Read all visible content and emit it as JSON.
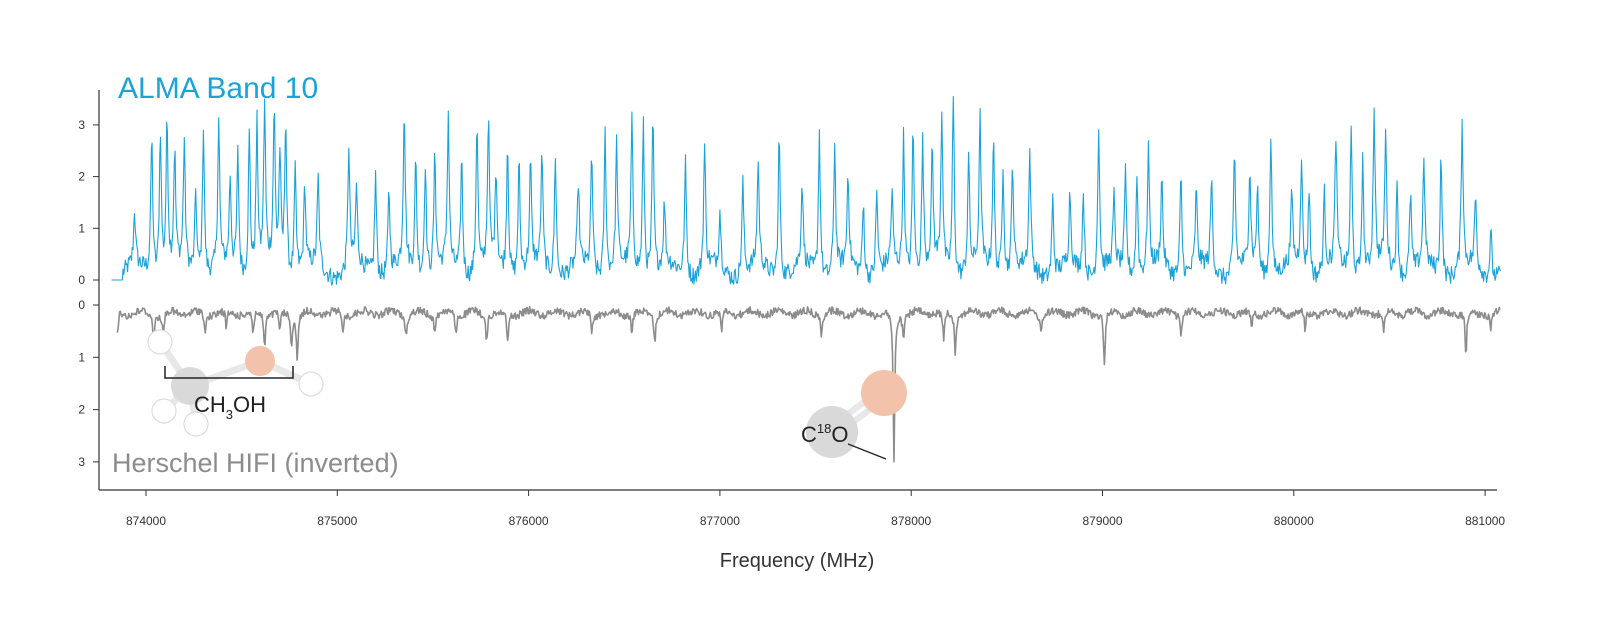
{
  "chart_data": {
    "type": "line",
    "xlabel": "Frequency (MHz)",
    "xlim": [
      873750,
      881100
    ],
    "x_ticks": [
      874000,
      875000,
      876000,
      877000,
      878000,
      879000,
      880000,
      881000
    ],
    "grid": false,
    "panels": [
      {
        "name": "ALMA Band 10",
        "color": "#1aa3d9",
        "ylim": [
          0,
          3.4
        ],
        "y_ticks": [
          "0",
          "1",
          "2",
          "3"
        ],
        "baseline": 0.15,
        "peaks": [
          [
            873940,
            1.05
          ],
          [
            874030,
            2.7
          ],
          [
            874075,
            2.8
          ],
          [
            874110,
            2.9
          ],
          [
            874150,
            2.2
          ],
          [
            874200,
            2.4
          ],
          [
            874260,
            1.6
          ],
          [
            874300,
            2.9
          ],
          [
            874380,
            2.8
          ],
          [
            874440,
            1.7
          ],
          [
            874480,
            2.3
          ],
          [
            874540,
            2.7
          ],
          [
            874580,
            2.8
          ],
          [
            874620,
            3.05
          ],
          [
            874670,
            3.0
          ],
          [
            874700,
            2.2
          ],
          [
            874730,
            3.05
          ],
          [
            874780,
            2.0
          ],
          [
            874830,
            1.6
          ],
          [
            874900,
            1.7
          ],
          [
            875060,
            2.4
          ],
          [
            875100,
            1.5
          ],
          [
            875200,
            2.0
          ],
          [
            875270,
            1.6
          ],
          [
            875350,
            3.1
          ],
          [
            875410,
            2.2
          ],
          [
            875460,
            2.2
          ],
          [
            875510,
            2.3
          ],
          [
            875580,
            2.9
          ],
          [
            875650,
            2.3
          ],
          [
            875730,
            3.0
          ],
          [
            875790,
            2.8
          ],
          [
            875830,
            1.9
          ],
          [
            875890,
            2.6
          ],
          [
            875950,
            2.2
          ],
          [
            876010,
            2.0
          ],
          [
            876070,
            2.2
          ],
          [
            876140,
            2.4
          ],
          [
            876260,
            1.6
          ],
          [
            876330,
            2.3
          ],
          [
            876400,
            2.8
          ],
          [
            876460,
            2.4
          ],
          [
            876540,
            2.8
          ],
          [
            876600,
            2.9
          ],
          [
            876650,
            3.0
          ],
          [
            876710,
            1.2
          ],
          [
            876820,
            2.2
          ],
          [
            876920,
            2.4
          ],
          [
            877000,
            1.1
          ],
          [
            877120,
            1.8
          ],
          [
            877200,
            2.0
          ],
          [
            877310,
            2.8
          ],
          [
            877430,
            1.6
          ],
          [
            877520,
            2.8
          ],
          [
            877600,
            2.5
          ],
          [
            877670,
            1.8
          ],
          [
            877750,
            1.4
          ],
          [
            877820,
            1.6
          ],
          [
            877900,
            1.4
          ],
          [
            877960,
            2.6
          ],
          [
            878010,
            2.9
          ],
          [
            878060,
            2.5
          ],
          [
            878110,
            2.2
          ],
          [
            878160,
            3.0
          ],
          [
            878220,
            3.45
          ],
          [
            878300,
            2.2
          ],
          [
            878360,
            2.8
          ],
          [
            878430,
            2.6
          ],
          [
            878480,
            2.2
          ],
          [
            878530,
            2.1
          ],
          [
            878620,
            2.2
          ],
          [
            878740,
            1.5
          ],
          [
            878830,
            1.4
          ],
          [
            878900,
            1.6
          ],
          [
            878980,
            2.9
          ],
          [
            879060,
            1.3
          ],
          [
            879120,
            1.9
          ],
          [
            879180,
            2.0
          ],
          [
            879240,
            2.4
          ],
          [
            879310,
            1.7
          ],
          [
            879410,
            2.0
          ],
          [
            879490,
            1.5
          ],
          [
            879570,
            1.8
          ],
          [
            879690,
            2.4
          ],
          [
            879770,
            1.9
          ],
          [
            879810,
            1.6
          ],
          [
            879880,
            2.8
          ],
          [
            879990,
            1.4
          ],
          [
            880040,
            2.2
          ],
          [
            880080,
            1.7
          ],
          [
            880160,
            1.5
          ],
          [
            880220,
            2.5
          ],
          [
            880300,
            2.8
          ],
          [
            880360,
            2.2
          ],
          [
            880420,
            3.1
          ],
          [
            880480,
            2.6
          ],
          [
            880540,
            1.7
          ],
          [
            880610,
            1.6
          ],
          [
            880680,
            2.1
          ],
          [
            880770,
            2.4
          ],
          [
            880880,
            2.9
          ],
          [
            880950,
            1.4
          ],
          [
            881030,
            0.9
          ]
        ]
      },
      {
        "name": "Herschel HIFI (inverted)",
        "color": "#8c8c8c",
        "ylim": [
          0,
          3.1
        ],
        "y_ticks": [
          "0",
          "1",
          "2",
          "3"
        ],
        "inverted": true,
        "baseline": 0.15,
        "dips": [
          [
            873850,
            0.45
          ],
          [
            874040,
            0.55
          ],
          [
            874090,
            0.5
          ],
          [
            874310,
            0.4
          ],
          [
            874420,
            0.35
          ],
          [
            874560,
            0.45
          ],
          [
            874620,
            0.6
          ],
          [
            874700,
            0.4
          ],
          [
            874760,
            0.6
          ],
          [
            874790,
            0.9
          ],
          [
            875030,
            0.35
          ],
          [
            875360,
            0.45
          ],
          [
            875510,
            0.35
          ],
          [
            875620,
            0.4
          ],
          [
            875780,
            0.55
          ],
          [
            875890,
            0.6
          ],
          [
            876330,
            0.35
          ],
          [
            876540,
            0.4
          ],
          [
            876660,
            0.55
          ],
          [
            877010,
            0.35
          ],
          [
            877530,
            0.35
          ],
          [
            877910,
            2.9
          ],
          [
            877960,
            0.45
          ],
          [
            878170,
            0.6
          ],
          [
            878230,
            0.7
          ],
          [
            878680,
            0.35
          ],
          [
            879010,
            1.05
          ],
          [
            879410,
            0.4
          ],
          [
            879780,
            0.35
          ],
          [
            880060,
            0.4
          ],
          [
            880470,
            0.35
          ],
          [
            880900,
            0.85
          ],
          [
            881030,
            0.35
          ]
        ]
      }
    ],
    "annotations": [
      {
        "label": "CH",
        "sub": "3",
        "suffix": "OH"
      },
      {
        "label": "C",
        "sup": "18",
        "suffix": "O"
      }
    ]
  }
}
